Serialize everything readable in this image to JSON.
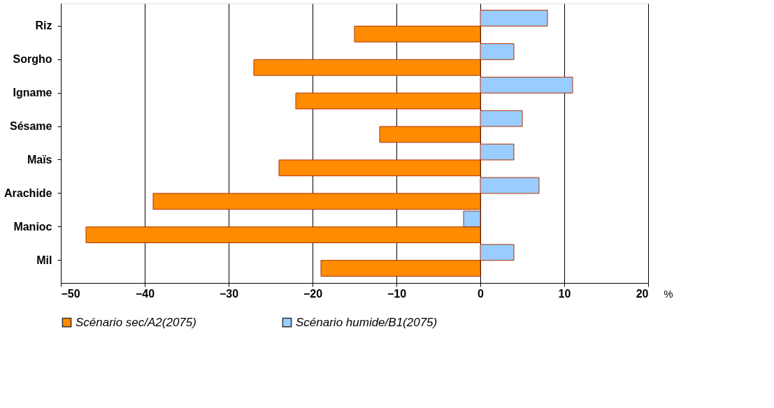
{
  "chart_data": {
    "type": "bar",
    "orientation": "horizontal",
    "xlabel": "%",
    "categories": [
      "Riz",
      "Sorgho",
      "Igname",
      "Sésame",
      "Maïs",
      "Arachide",
      "Manioc",
      "Mil"
    ],
    "series": [
      {
        "name": "Scénario sec/A2(2075)",
        "color": "#ff8c00",
        "values": [
          -15,
          -27,
          -22,
          -12,
          -24,
          -39,
          -47,
          -19
        ]
      },
      {
        "name": "Scénario humide/B1(2075)",
        "color": "#99ccff",
        "values": [
          8,
          4,
          11,
          5,
          4,
          7,
          -2,
          4
        ]
      }
    ],
    "xlim": [
      -50,
      20
    ],
    "xticks": [
      -50,
      -40,
      -30,
      -20,
      -10,
      0,
      10,
      20
    ],
    "grid": "x",
    "legend": "bottom"
  }
}
